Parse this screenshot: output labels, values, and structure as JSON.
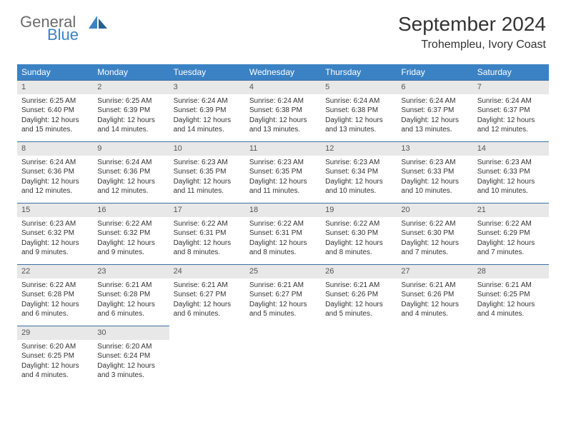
{
  "logo": {
    "text1": "General",
    "text2": "Blue"
  },
  "title": "September 2024",
  "location": "Trohempleu, Ivory Coast",
  "colors": {
    "header_bg": "#3b82c4",
    "header_text": "#ffffff",
    "daybar_bg": "#e8e8e8",
    "daybar_border": "#3b6fa0",
    "body_text": "#333333",
    "logo_gray": "#6b6b6b",
    "logo_blue": "#3b82c4",
    "page_bg": "#ffffff"
  },
  "day_headers": [
    "Sunday",
    "Monday",
    "Tuesday",
    "Wednesday",
    "Thursday",
    "Friday",
    "Saturday"
  ],
  "weeks": [
    [
      {
        "n": "1",
        "sr": "6:25 AM",
        "ss": "6:40 PM",
        "dl": "12 hours and 15 minutes."
      },
      {
        "n": "2",
        "sr": "6:25 AM",
        "ss": "6:39 PM",
        "dl": "12 hours and 14 minutes."
      },
      {
        "n": "3",
        "sr": "6:24 AM",
        "ss": "6:39 PM",
        "dl": "12 hours and 14 minutes."
      },
      {
        "n": "4",
        "sr": "6:24 AM",
        "ss": "6:38 PM",
        "dl": "12 hours and 13 minutes."
      },
      {
        "n": "5",
        "sr": "6:24 AM",
        "ss": "6:38 PM",
        "dl": "12 hours and 13 minutes."
      },
      {
        "n": "6",
        "sr": "6:24 AM",
        "ss": "6:37 PM",
        "dl": "12 hours and 13 minutes."
      },
      {
        "n": "7",
        "sr": "6:24 AM",
        "ss": "6:37 PM",
        "dl": "12 hours and 12 minutes."
      }
    ],
    [
      {
        "n": "8",
        "sr": "6:24 AM",
        "ss": "6:36 PM",
        "dl": "12 hours and 12 minutes."
      },
      {
        "n": "9",
        "sr": "6:24 AM",
        "ss": "6:36 PM",
        "dl": "12 hours and 12 minutes."
      },
      {
        "n": "10",
        "sr": "6:23 AM",
        "ss": "6:35 PM",
        "dl": "12 hours and 11 minutes."
      },
      {
        "n": "11",
        "sr": "6:23 AM",
        "ss": "6:35 PM",
        "dl": "12 hours and 11 minutes."
      },
      {
        "n": "12",
        "sr": "6:23 AM",
        "ss": "6:34 PM",
        "dl": "12 hours and 10 minutes."
      },
      {
        "n": "13",
        "sr": "6:23 AM",
        "ss": "6:33 PM",
        "dl": "12 hours and 10 minutes."
      },
      {
        "n": "14",
        "sr": "6:23 AM",
        "ss": "6:33 PM",
        "dl": "12 hours and 10 minutes."
      }
    ],
    [
      {
        "n": "15",
        "sr": "6:23 AM",
        "ss": "6:32 PM",
        "dl": "12 hours and 9 minutes."
      },
      {
        "n": "16",
        "sr": "6:22 AM",
        "ss": "6:32 PM",
        "dl": "12 hours and 9 minutes."
      },
      {
        "n": "17",
        "sr": "6:22 AM",
        "ss": "6:31 PM",
        "dl": "12 hours and 8 minutes."
      },
      {
        "n": "18",
        "sr": "6:22 AM",
        "ss": "6:31 PM",
        "dl": "12 hours and 8 minutes."
      },
      {
        "n": "19",
        "sr": "6:22 AM",
        "ss": "6:30 PM",
        "dl": "12 hours and 8 minutes."
      },
      {
        "n": "20",
        "sr": "6:22 AM",
        "ss": "6:30 PM",
        "dl": "12 hours and 7 minutes."
      },
      {
        "n": "21",
        "sr": "6:22 AM",
        "ss": "6:29 PM",
        "dl": "12 hours and 7 minutes."
      }
    ],
    [
      {
        "n": "22",
        "sr": "6:22 AM",
        "ss": "6:28 PM",
        "dl": "12 hours and 6 minutes."
      },
      {
        "n": "23",
        "sr": "6:21 AM",
        "ss": "6:28 PM",
        "dl": "12 hours and 6 minutes."
      },
      {
        "n": "24",
        "sr": "6:21 AM",
        "ss": "6:27 PM",
        "dl": "12 hours and 6 minutes."
      },
      {
        "n": "25",
        "sr": "6:21 AM",
        "ss": "6:27 PM",
        "dl": "12 hours and 5 minutes."
      },
      {
        "n": "26",
        "sr": "6:21 AM",
        "ss": "6:26 PM",
        "dl": "12 hours and 5 minutes."
      },
      {
        "n": "27",
        "sr": "6:21 AM",
        "ss": "6:26 PM",
        "dl": "12 hours and 4 minutes."
      },
      {
        "n": "28",
        "sr": "6:21 AM",
        "ss": "6:25 PM",
        "dl": "12 hours and 4 minutes."
      }
    ],
    [
      {
        "n": "29",
        "sr": "6:20 AM",
        "ss": "6:25 PM",
        "dl": "12 hours and 4 minutes."
      },
      {
        "n": "30",
        "sr": "6:20 AM",
        "ss": "6:24 PM",
        "dl": "12 hours and 3 minutes."
      },
      null,
      null,
      null,
      null,
      null
    ]
  ],
  "labels": {
    "sunrise": "Sunrise:",
    "sunset": "Sunset:",
    "daylight": "Daylight:"
  }
}
